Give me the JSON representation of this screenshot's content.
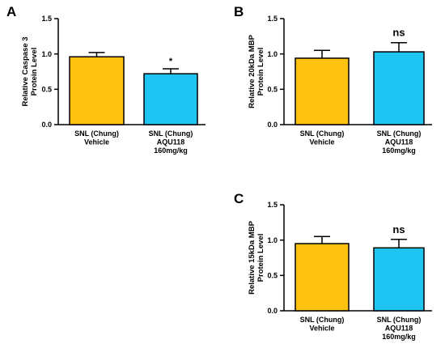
{
  "chart_data": [
    {
      "panel": "A",
      "type": "bar",
      "ylabel": [
        "Relative Caspase 3",
        "Protein Level"
      ],
      "ylim": [
        0,
        1.5
      ],
      "yticks": [
        "0.0",
        "0.5",
        "1.0",
        "1.5"
      ],
      "categories": [
        [
          "SNL (Chung)",
          "Vehicle"
        ],
        [
          "SNL (Chung)",
          "AQU118",
          "160mg/kg"
        ]
      ],
      "values": [
        0.96,
        0.72
      ],
      "errors": [
        0.06,
        0.07
      ],
      "colors": [
        "#FFC20E",
        "#1EC4F2"
      ],
      "annotations": [
        "",
        "*"
      ]
    },
    {
      "panel": "B",
      "type": "bar",
      "ylabel": [
        "Relative 20kDa MBP",
        "Protein Level"
      ],
      "ylim": [
        0,
        1.5
      ],
      "yticks": [
        "0.0",
        "0.5",
        "1.0",
        "1.5"
      ],
      "categories": [
        [
          "SNL (Chung)",
          "Vehicle"
        ],
        [
          "SNL (Chung)",
          "AQU118",
          "160mg/kg"
        ]
      ],
      "values": [
        0.94,
        1.03
      ],
      "errors": [
        0.11,
        0.13
      ],
      "colors": [
        "#FFC20E",
        "#1EC4F2"
      ],
      "annotations": [
        "",
        "ns"
      ]
    },
    {
      "panel": "C",
      "type": "bar",
      "ylabel": [
        "Relative 15kDa MBP",
        "Protein Level"
      ],
      "ylim": [
        0,
        1.5
      ],
      "yticks": [
        "0.0",
        "0.5",
        "1.0",
        "1.5"
      ],
      "categories": [
        [
          "SNL (Chung)",
          "Vehicle"
        ],
        [
          "SNL (Chung)",
          "AQU118",
          "160mg/kg"
        ]
      ],
      "values": [
        0.95,
        0.89
      ],
      "errors": [
        0.1,
        0.12
      ],
      "colors": [
        "#FFC20E",
        "#1EC4F2"
      ],
      "annotations": [
        "",
        "ns"
      ]
    }
  ]
}
